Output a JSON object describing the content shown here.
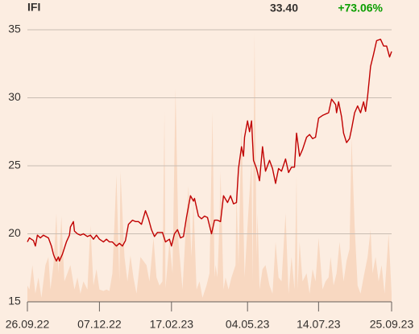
{
  "chart_data": {
    "type": "line",
    "title": "IFI",
    "last_price": "33.40",
    "change": "+73.06%",
    "color": "#c00000",
    "volume_color": "#f8d8c1",
    "change_color": "#0a9e00",
    "grid": true,
    "xlim": [
      0,
      364
    ],
    "xticks": [
      {
        "value": 0,
        "label": "26.09.22"
      },
      {
        "value": 72,
        "label": "07.12.22"
      },
      {
        "value": 144,
        "label": "17.02.23"
      },
      {
        "value": 220,
        "label": "04.05.23"
      },
      {
        "value": 291,
        "label": "14.07.23"
      },
      {
        "value": 364,
        "label": "25.09.23"
      }
    ],
    "ylim": [
      15,
      35.5
    ],
    "yticks": [
      15,
      20,
      25,
      30,
      35
    ],
    "x": [
      0,
      2,
      6,
      8,
      10,
      13,
      16,
      21,
      24,
      26,
      27,
      29,
      31,
      32,
      35,
      39,
      42,
      43,
      46,
      47,
      50,
      53,
      56,
      60,
      63,
      66,
      69,
      72,
      76,
      79,
      82,
      85,
      89,
      92,
      95,
      98,
      101,
      105,
      108,
      111,
      114,
      118,
      121,
      124,
      127,
      130,
      135,
      138,
      142,
      144,
      147,
      150,
      153,
      156,
      159,
      163,
      166,
      167,
      171,
      174,
      177,
      180,
      184,
      187,
      190,
      193,
      196,
      200,
      203,
      206,
      209,
      211,
      214,
      216,
      217,
      220,
      222,
      224,
      226,
      229,
      232,
      235,
      238,
      242,
      245,
      248,
      251,
      254,
      258,
      261,
      264,
      267,
      269,
      272,
      275,
      279,
      282,
      285,
      288,
      291,
      295,
      298,
      301,
      304,
      308,
      309,
      311,
      314,
      316,
      319,
      322,
      324,
      327,
      330,
      333,
      336,
      338,
      340,
      343,
      346,
      349,
      353,
      356,
      359,
      362,
      364
    ],
    "values": [
      19.4,
      19.7,
      19.5,
      19.1,
      19.9,
      19.7,
      19.9,
      19.7,
      19.1,
      18.5,
      18.3,
      18.0,
      18.3,
      18.0,
      18.5,
      19.4,
      19.9,
      20.5,
      20.9,
      20.2,
      20.0,
      19.9,
      20.0,
      19.8,
      19.9,
      19.6,
      19.9,
      19.6,
      19.4,
      19.6,
      19.4,
      19.4,
      19.1,
      19.3,
      19.1,
      19.5,
      20.7,
      21.0,
      20.9,
      20.9,
      20.7,
      21.7,
      21.1,
      20.3,
      19.8,
      20.1,
      20.1,
      19.4,
      19.6,
      19.1,
      20.0,
      20.3,
      19.7,
      19.8,
      21.2,
      22.8,
      22.4,
      22.6,
      21.3,
      21.1,
      21.3,
      21.2,
      20.0,
      21.0,
      21.0,
      20.9,
      22.8,
      22.3,
      22.8,
      22.2,
      22.3,
      24.8,
      26.4,
      25.7,
      27.1,
      28.3,
      27.5,
      28.3,
      25.4,
      24.8,
      23.9,
      26.4,
      24.6,
      25.4,
      24.8,
      23.7,
      24.8,
      24.6,
      25.5,
      24.5,
      24.9,
      24.9,
      27.4,
      25.7,
      26.2,
      27.1,
      27.3,
      27.0,
      27.1,
      28.5,
      28.7,
      28.8,
      28.9,
      29.9,
      29.5,
      28.9,
      29.7,
      28.6,
      27.4,
      26.7,
      27.0,
      27.7,
      28.9,
      29.4,
      28.9,
      29.7,
      29.0,
      30.1,
      32.3,
      33.2,
      34.2,
      34.3,
      33.8,
      33.8,
      33.0,
      33.4
    ],
    "volume": {
      "x": [
        0,
        2,
        5,
        8,
        11,
        14,
        18,
        21,
        23,
        26,
        29,
        31,
        34,
        37,
        40,
        43,
        47,
        50,
        53,
        56,
        60,
        63,
        66,
        69,
        72,
        76,
        79,
        82,
        85,
        89,
        92,
        93,
        97,
        100,
        103,
        106,
        109,
        113,
        116,
        119,
        122,
        126,
        129,
        132,
        135,
        137,
        138,
        142,
        145,
        148,
        151,
        155,
        158,
        161,
        164,
        166,
        169,
        172,
        175,
        179,
        182,
        185,
        187,
        188,
        190,
        192,
        193,
        196,
        198,
        201,
        204,
        208,
        209,
        211,
        214,
        217,
        221,
        224,
        225,
        227,
        229,
        230,
        232,
        235,
        238,
        242,
        245,
        248,
        251,
        254,
        258,
        261,
        264,
        267,
        269,
        270,
        272,
        275,
        279,
        282,
        285,
        288,
        291,
        295,
        298,
        301,
        303,
        306,
        309,
        312,
        316,
        319,
        322,
        324,
        327,
        330,
        333,
        336,
        340,
        343,
        345,
        348,
        351,
        354,
        357,
        361,
        364
      ],
      "values": [
        16.2,
        15.9,
        17.7,
        15.6,
        16.8,
        15.3,
        17.7,
        18.3,
        15.9,
        17.7,
        21.5,
        17.1,
        21.3,
        16.5,
        17.1,
        17.7,
        15.9,
        16.8,
        15.6,
        16.5,
        15.9,
        20.6,
        16.2,
        17.4,
        15.9,
        15.8,
        15.9,
        15.8,
        17.1,
        24.3,
        16.5,
        24.6,
        18.3,
        16.5,
        18.4,
        16.8,
        15.6,
        18.3,
        18.0,
        17.7,
        16.5,
        19.7,
        16.8,
        16.2,
        16.5,
        29.0,
        16.0,
        19.4,
        17.1,
        30.7,
        19.4,
        15.9,
        20.0,
        23.5,
        18.3,
        22.4,
        15.9,
        16.5,
        15.3,
        16.2,
        17.1,
        29.0,
        16.8,
        17.7,
        16.8,
        20.9,
        24.6,
        15.9,
        16.8,
        15.9,
        16.8,
        17.7,
        23.0,
        17.7,
        28.3,
        16.8,
        21.8,
        25.4,
        16.5,
        34.8,
        18.3,
        21.5,
        15.9,
        17.4,
        17.7,
        16.2,
        15.6,
        19.4,
        16.8,
        16.5,
        21.5,
        15.6,
        18.3,
        15.9,
        24.2,
        15.9,
        19.4,
        16.5,
        17.1,
        15.6,
        17.4,
        16.5,
        19.7,
        15.9,
        16.5,
        16.8,
        18.3,
        16.2,
        17.1,
        19.4,
        16.5,
        18.0,
        18.9,
        27.1,
        20.6,
        16.2,
        15.6,
        16.8,
        18.3,
        20.3,
        17.1,
        18.3,
        16.5,
        17.7,
        15.6,
        20.0,
        15.6
      ]
    }
  }
}
